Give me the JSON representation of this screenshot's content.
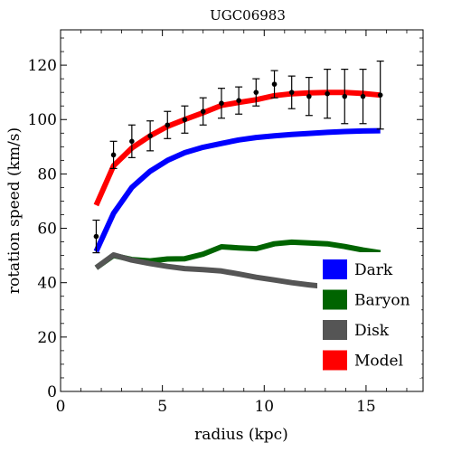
{
  "chart_data": {
    "type": "line",
    "title": "UGC06983",
    "xlabel": "radius (kpc)",
    "ylabel": "rotation speed (km/s)",
    "xlim": [
      0,
      17.8
    ],
    "ylim": [
      0,
      133
    ],
    "xticks": [
      0,
      5,
      10,
      15
    ],
    "yticks": [
      0,
      20,
      40,
      60,
      80,
      100,
      120
    ],
    "grid": false,
    "legend_position": "bottom-right",
    "x": [
      1.75,
      2.6,
      3.5,
      4.4,
      5.25,
      6.1,
      7.0,
      7.9,
      8.75,
      9.6,
      10.5,
      11.35,
      12.2,
      13.1,
      13.95,
      14.85,
      15.7
    ],
    "series": [
      {
        "name": "Dark",
        "color": "#0000ff",
        "values": [
          51.5,
          65.5,
          75.0,
          81.0,
          85.0,
          87.8,
          89.8,
          91.2,
          92.5,
          93.4,
          94.0,
          94.5,
          94.9,
          95.3,
          95.6,
          95.8,
          95.9
        ]
      },
      {
        "name": "Baryon",
        "color": "#006400",
        "values": [
          45.5,
          50.0,
          48.5,
          48.0,
          48.7,
          48.8,
          50.5,
          53.2,
          52.8,
          52.5,
          54.3,
          54.9,
          54.6,
          54.3,
          53.3,
          52.0,
          51.0
        ]
      },
      {
        "name": "Disk",
        "color": "#555555",
        "values": [
          45.5,
          50.2,
          48.3,
          47.0,
          46.0,
          45.2,
          44.8,
          44.3,
          43.2,
          42.0,
          41.0,
          40.0,
          39.2,
          38.5,
          37.8,
          37.2,
          36.5
        ]
      },
      {
        "name": "Model",
        "color": "#ff0000",
        "values": [
          68.5,
          83.0,
          89.5,
          94.0,
          97.5,
          100.0,
          102.5,
          105.2,
          106.3,
          107.3,
          108.8,
          109.5,
          109.8,
          110.0,
          110.0,
          109.6,
          109.0
        ]
      }
    ],
    "observations": {
      "x": [
        1.75,
        2.6,
        3.5,
        4.4,
        5.25,
        6.1,
        7.0,
        7.9,
        8.75,
        9.6,
        10.5,
        11.35,
        12.2,
        13.1,
        13.95,
        14.85,
        15.7
      ],
      "y": [
        57.0,
        87.0,
        92.0,
        94.0,
        98.0,
        100.0,
        103.0,
        106.0,
        107.0,
        110.0,
        113.0,
        110.0,
        108.5,
        109.5,
        108.5,
        108.5,
        109.0
      ],
      "err": [
        6.0,
        5.0,
        6.0,
        5.5,
        5.0,
        5.0,
        5.0,
        5.5,
        5.0,
        5.0,
        5.0,
        6.0,
        7.0,
        9.0,
        10.0,
        10.0,
        12.5
      ]
    }
  }
}
